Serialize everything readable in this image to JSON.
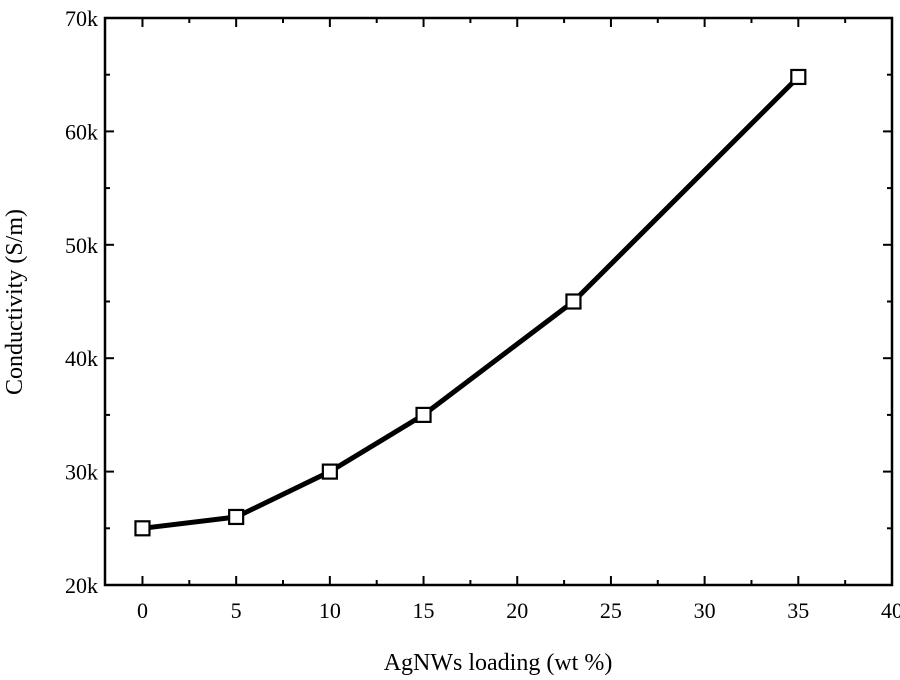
{
  "chart_data": {
    "type": "line",
    "title": "",
    "xlabel": "AgNWs loading (wt %)",
    "ylabel": "Conductivity (S/m)",
    "xlim": [
      -2,
      40
    ],
    "ylim": [
      20000,
      70000
    ],
    "xticks": [
      0,
      5,
      10,
      15,
      20,
      25,
      30,
      35,
      40
    ],
    "xtick_labels": [
      "0",
      "5",
      "10",
      "15",
      "20",
      "25",
      "30",
      "35",
      "40"
    ],
    "yticks": [
      20000,
      30000,
      40000,
      50000,
      60000,
      70000
    ],
    "ytick_labels": [
      "20k",
      "30k",
      "40k",
      "50k",
      "60k",
      "70k"
    ],
    "grid": false,
    "legend": "none",
    "marker": "open-square",
    "line_color": "#000000",
    "series": [
      {
        "x": [
          0,
          5,
          10,
          15,
          23,
          35
        ],
        "y": [
          25000,
          26000,
          30000,
          35000,
          45000,
          64800
        ]
      }
    ]
  }
}
